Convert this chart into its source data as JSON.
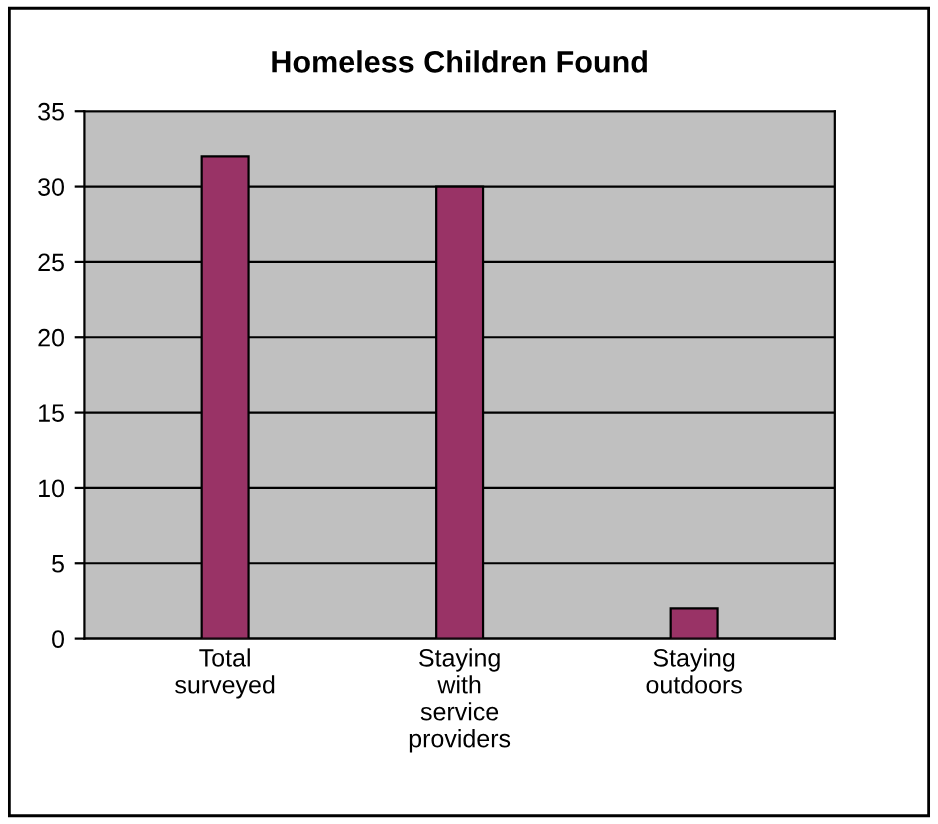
{
  "chart_data": {
    "type": "bar",
    "title": "Homeless Children Found",
    "categories": [
      "Total\nsurveyed",
      "Staying\nwith\nservice\nproviders",
      "Staying\noutdoors"
    ],
    "values": [
      32,
      30,
      2
    ],
    "color": "#993366",
    "ylim": [
      0,
      35
    ],
    "yticks": [
      0,
      5,
      10,
      15,
      20,
      25,
      30,
      35
    ],
    "grid": "y"
  }
}
